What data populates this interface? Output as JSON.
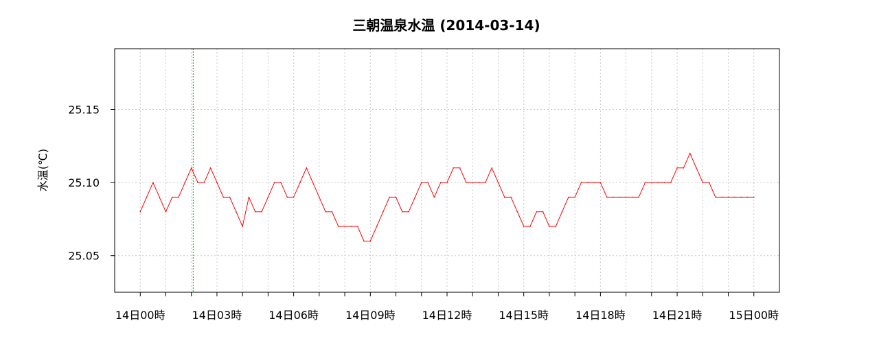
{
  "chart_data": {
    "type": "line",
    "title": "三朝温泉水温 (2014-03-14)",
    "xlabel": "",
    "ylabel": "水温(℃)",
    "ylim": [
      25.025,
      25.1915
    ],
    "y_ticks": [
      "25.05",
      "25.10",
      "25.15"
    ],
    "y_tick_values": [
      25.05,
      25.1,
      25.15
    ],
    "x_range_hours": [
      -1.0,
      25.0
    ],
    "x_tick_labels": [
      "14日00時",
      "14日03時",
      "14日06時",
      "14日09時",
      "14日12時",
      "14日15時",
      "14日18時",
      "14日21時",
      "15日00時"
    ],
    "x_tick_hours": [
      0,
      3,
      6,
      9,
      12,
      15,
      18,
      21,
      24
    ],
    "x_minor_tick_hours": [
      1,
      2,
      4,
      5,
      7,
      8,
      10,
      11,
      13,
      14,
      16,
      17,
      19,
      20,
      22,
      23
    ],
    "grid": true,
    "marker_hour": 2.07,
    "series": [
      {
        "color": "#ff0000",
        "x_hours": [
          0.0,
          0.25,
          0.5,
          0.75,
          1.0,
          1.25,
          1.5,
          1.75,
          2.0,
          2.25,
          2.5,
          2.75,
          3.0,
          3.25,
          3.5,
          3.75,
          4.0,
          4.25,
          4.5,
          4.75,
          5.0,
          5.25,
          5.5,
          5.75,
          6.0,
          6.25,
          6.5,
          6.75,
          7.0,
          7.25,
          7.5,
          7.75,
          8.0,
          8.25,
          8.5,
          8.75,
          9.0,
          9.25,
          9.5,
          9.75,
          10.0,
          10.25,
          10.5,
          10.75,
          11.0,
          11.25,
          11.5,
          11.75,
          12.0,
          12.25,
          12.5,
          12.75,
          13.0,
          13.25,
          13.5,
          13.75,
          14.0,
          14.25,
          14.5,
          14.75,
          15.0,
          15.25,
          15.5,
          15.75,
          16.0,
          16.25,
          16.5,
          16.75,
          17.0,
          17.25,
          17.5,
          17.75,
          18.0,
          18.25,
          18.5,
          18.75,
          19.0,
          19.25,
          19.5,
          19.75,
          20.0,
          20.25,
          20.5,
          20.75,
          21.0,
          21.25,
          21.5,
          21.75,
          22.0,
          22.25,
          22.5,
          22.75,
          23.0,
          23.25,
          23.5,
          23.75,
          24.0
        ],
        "y": [
          25.08,
          25.09,
          25.1,
          25.09,
          25.08,
          25.09,
          25.09,
          25.1,
          25.11,
          25.1,
          25.1,
          25.11,
          25.1,
          25.09,
          25.09,
          25.08,
          25.07,
          25.09,
          25.08,
          25.08,
          25.09,
          25.1,
          25.1,
          25.09,
          25.09,
          25.1,
          25.11,
          25.1,
          25.09,
          25.08,
          25.08,
          25.07,
          25.07,
          25.07,
          25.07,
          25.06,
          25.06,
          25.07,
          25.08,
          25.09,
          25.09,
          25.08,
          25.08,
          25.09,
          25.1,
          25.1,
          25.09,
          25.1,
          25.1,
          25.11,
          25.11,
          25.1,
          25.1,
          25.1,
          25.1,
          25.11,
          25.1,
          25.09,
          25.09,
          25.08,
          25.07,
          25.07,
          25.08,
          25.08,
          25.07,
          25.07,
          25.08,
          25.09,
          25.09,
          25.1,
          25.1,
          25.1,
          25.1,
          25.09,
          25.09,
          25.09,
          25.09,
          25.09,
          25.09,
          25.1,
          25.1,
          25.1,
          25.1,
          25.1,
          25.11,
          25.11,
          25.12,
          25.11,
          25.1,
          25.1,
          25.09,
          25.09,
          25.09,
          25.09,
          25.09,
          25.09,
          25.09
        ]
      }
    ]
  }
}
